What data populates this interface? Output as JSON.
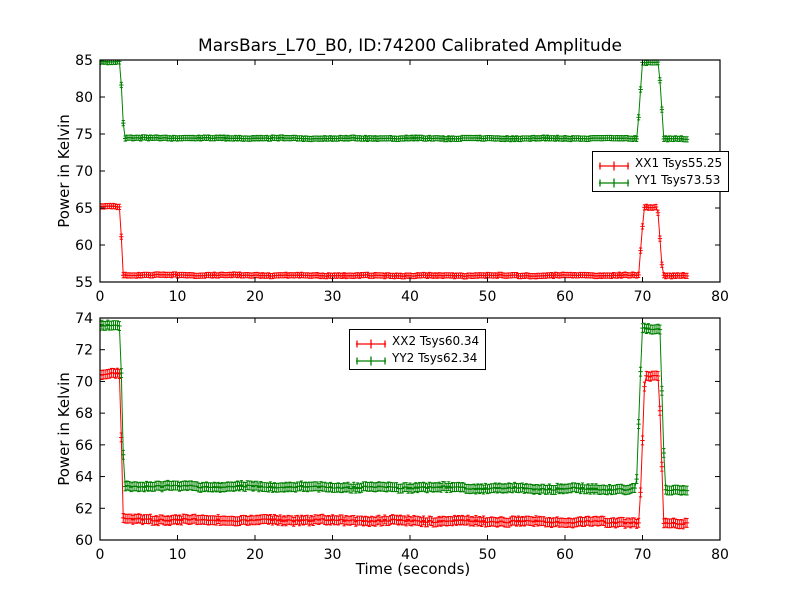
{
  "figure": {
    "title": "MarsBars_L70_B0, ID:74200 Calibrated Amplitude",
    "background_color": "#ffffff",
    "frame_color": "#000000"
  },
  "chart_data": [
    {
      "type": "line",
      "subplot": "top",
      "title": "MarsBars_L70_B0, ID:74200 Calibrated Amplitude",
      "xlabel": "",
      "ylabel": "Power in Kelvin",
      "xlim": [
        0,
        80
      ],
      "ylim": [
        55,
        85
      ],
      "xticks": [
        0,
        10,
        20,
        30,
        40,
        50,
        60,
        70,
        80
      ],
      "yticks": [
        55,
        60,
        65,
        70,
        75,
        80,
        85
      ],
      "grid": false,
      "legend": {
        "position": "center-right",
        "entries": [
          "XX1 Tsys55.25",
          "YY1 Tsys73.53"
        ]
      },
      "series": [
        {
          "name": "XX1 Tsys55.25",
          "color": "#ff0000",
          "marker": "+",
          "errorbar_halfheight": 0.35,
          "sample_step_s": 0.25,
          "noise_amplitude": 0.07,
          "points_t_y": [
            [
              0,
              65.2
            ],
            [
              2.55,
              65.2
            ],
            [
              3.0,
              55.95
            ],
            [
              40,
              55.85
            ],
            [
              69.5,
              55.9
            ],
            [
              70.2,
              65.1
            ],
            [
              71.95,
              65.1
            ],
            [
              72.6,
              55.9
            ],
            [
              75.9,
              55.85
            ]
          ]
        },
        {
          "name": "YY1 Tsys73.53",
          "color": "#008000",
          "marker": "+",
          "errorbar_halfheight": 0.35,
          "sample_step_s": 0.25,
          "noise_amplitude": 0.07,
          "points_t_y": [
            [
              0,
              84.8
            ],
            [
              2.6,
              84.8
            ],
            [
              3.1,
              74.45
            ],
            [
              40,
              74.4
            ],
            [
              69.3,
              74.4
            ],
            [
              70.0,
              84.7
            ],
            [
              72.1,
              84.7
            ],
            [
              72.75,
              74.35
            ],
            [
              75.9,
              74.3
            ]
          ]
        }
      ]
    },
    {
      "type": "line",
      "subplot": "bottom",
      "title": "",
      "xlabel": "Time (seconds)",
      "ylabel": "Power in Kelvin",
      "xlim": [
        0,
        80
      ],
      "ylim": [
        60,
        74
      ],
      "xticks": [
        0,
        10,
        20,
        30,
        40,
        50,
        60,
        70,
        80
      ],
      "yticks": [
        60,
        62,
        64,
        66,
        68,
        70,
        72,
        74
      ],
      "grid": false,
      "legend": {
        "position": "upper-center",
        "entries": [
          "XX2 Tsys60.34",
          "YY2 Tsys62.34"
        ]
      },
      "series": [
        {
          "name": "XX2 Tsys60.34",
          "color": "#ff0000",
          "marker": "+",
          "errorbar_halfheight": 0.28,
          "sample_step_s": 0.25,
          "noise_amplitude": 0.07,
          "points_t_y": [
            [
              0,
              70.5
            ],
            [
              2.55,
              70.5
            ],
            [
              3.0,
              61.3
            ],
            [
              45,
              61.2
            ],
            [
              69.6,
              61.1
            ],
            [
              70.3,
              70.3
            ],
            [
              72.1,
              70.3
            ],
            [
              72.75,
              61.0
            ],
            [
              75.9,
              61.05
            ]
          ]
        },
        {
          "name": "YY2 Tsys62.34",
          "color": "#008000",
          "marker": "+",
          "errorbar_halfheight": 0.28,
          "sample_step_s": 0.25,
          "noise_amplitude": 0.07,
          "points_t_y": [
            [
              0,
              73.5
            ],
            [
              2.6,
              73.5
            ],
            [
              3.1,
              63.4
            ],
            [
              45,
              63.3
            ],
            [
              69.2,
              63.2
            ],
            [
              69.95,
              73.3
            ],
            [
              72.25,
              73.3
            ],
            [
              72.9,
              63.15
            ],
            [
              75.9,
              63.2
            ]
          ]
        }
      ]
    }
  ]
}
